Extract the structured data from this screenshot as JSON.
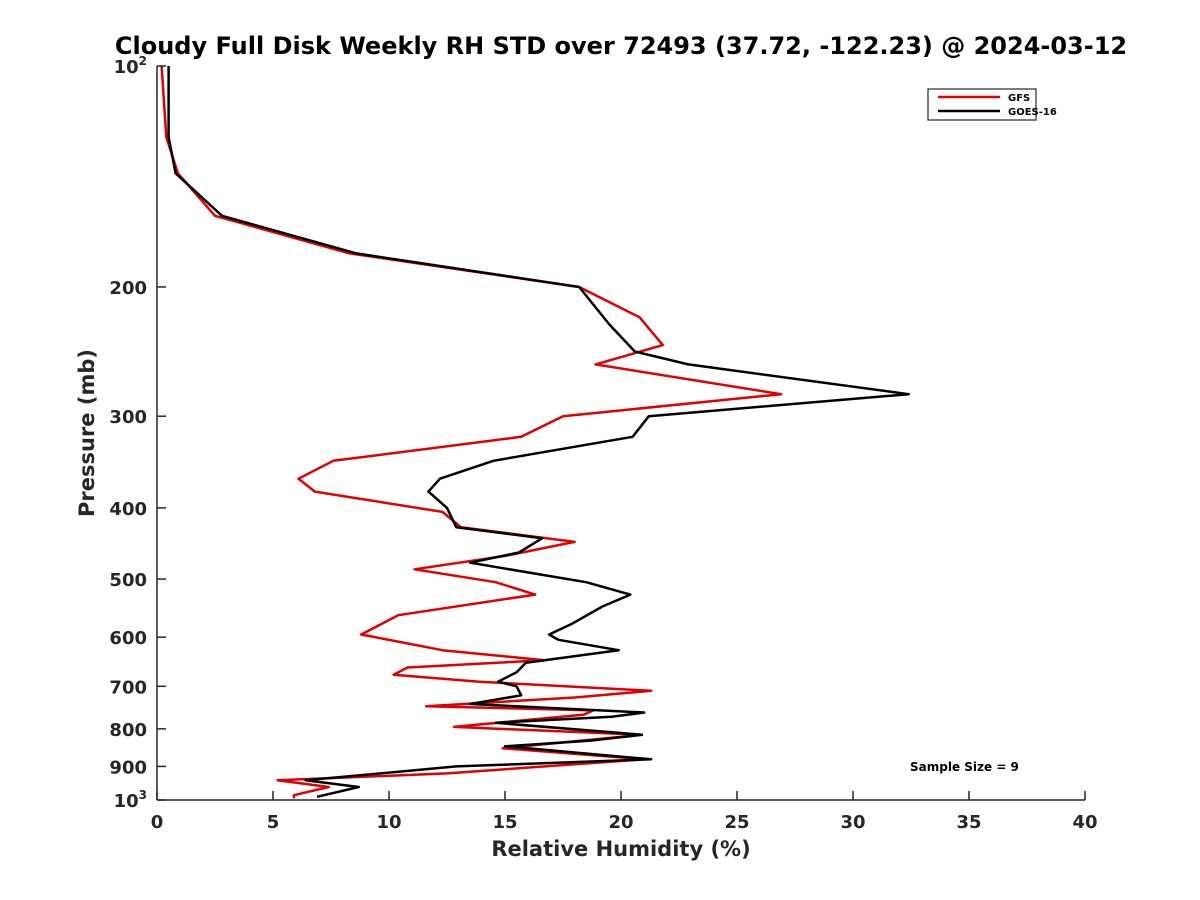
{
  "chart_data": {
    "type": "line",
    "title": "Cloudy Full Disk Weekly RH STD over 72493 (37.72, -122.23) @ 2024-03-12",
    "xlabel": "Relative Humidity (%)",
    "ylabel": "Pressure (mb)",
    "xlim": [
      0,
      40
    ],
    "ylim": [
      100,
      1000
    ],
    "y_scale": "log",
    "y_reversed": true,
    "x_ticks": [
      "0",
      "5",
      "10",
      "15",
      "20",
      "25",
      "30",
      "35",
      "40"
    ],
    "x_tick_values": [
      0,
      5,
      10,
      15,
      20,
      25,
      30,
      35,
      40
    ],
    "y_ticks": [
      {
        "value": 100,
        "base": "10",
        "exp": "2"
      },
      {
        "value": 200,
        "base": "200",
        "exp": ""
      },
      {
        "value": 300,
        "base": "300",
        "exp": ""
      },
      {
        "value": 400,
        "base": "400",
        "exp": ""
      },
      {
        "value": 500,
        "base": "500",
        "exp": ""
      },
      {
        "value": 600,
        "base": "600",
        "exp": ""
      },
      {
        "value": 700,
        "base": "700",
        "exp": ""
      },
      {
        "value": 800,
        "base": "800",
        "exp": ""
      },
      {
        "value": 900,
        "base": "900",
        "exp": ""
      },
      {
        "value": 1000,
        "base": "10",
        "exp": "3"
      }
    ],
    "grid": false,
    "legend_position": "top-right",
    "annotation": "Sample Size = 9",
    "series": [
      {
        "name": "GFS",
        "color": "#e00000",
        "points": [
          [
            0.2,
            100
          ],
          [
            0.4,
            125
          ],
          [
            0.9,
            140
          ],
          [
            2.5,
            160
          ],
          [
            8.3,
            180
          ],
          [
            18.2,
            200
          ],
          [
            20.8,
            220
          ],
          [
            21.8,
            240
          ],
          [
            18.9,
            255
          ],
          [
            26.9,
            280
          ],
          [
            17.5,
            300
          ],
          [
            15.7,
            320
          ],
          [
            7.6,
            345
          ],
          [
            6.1,
            365
          ],
          [
            6.8,
            380
          ],
          [
            12.3,
            405
          ],
          [
            13.1,
            425
          ],
          [
            18.0,
            445
          ],
          [
            15.0,
            465
          ],
          [
            11.1,
            485
          ],
          [
            14.6,
            505
          ],
          [
            16.3,
            525
          ],
          [
            10.4,
            560
          ],
          [
            8.8,
            595
          ],
          [
            12.3,
            625
          ],
          [
            16.7,
            645
          ],
          [
            10.8,
            660
          ],
          [
            10.2,
            675
          ],
          [
            13.9,
            690
          ],
          [
            21.3,
            710
          ],
          [
            18.0,
            725
          ],
          [
            11.6,
            745
          ],
          [
            18.8,
            755
          ],
          [
            18.4,
            765
          ],
          [
            12.8,
            795
          ],
          [
            20.9,
            815
          ],
          [
            14.9,
            850
          ],
          [
            21.0,
            880
          ],
          [
            12.5,
            920
          ],
          [
            5.2,
            940
          ],
          [
            7.4,
            960
          ],
          [
            5.9,
            985
          ],
          [
            5.9,
            995
          ]
        ]
      },
      {
        "name": "GOES-16",
        "color": "#000000",
        "points": [
          [
            0.5,
            100
          ],
          [
            0.5,
            125
          ],
          [
            0.8,
            140
          ],
          [
            2.8,
            160
          ],
          [
            8.6,
            180
          ],
          [
            18.2,
            200
          ],
          [
            19.5,
            225
          ],
          [
            20.6,
            245
          ],
          [
            22.9,
            255
          ],
          [
            32.4,
            280
          ],
          [
            21.2,
            300
          ],
          [
            20.5,
            320
          ],
          [
            14.5,
            345
          ],
          [
            12.2,
            365
          ],
          [
            11.7,
            380
          ],
          [
            12.5,
            400
          ],
          [
            12.9,
            425
          ],
          [
            16.6,
            440
          ],
          [
            15.6,
            460
          ],
          [
            13.5,
            475
          ],
          [
            18.5,
            505
          ],
          [
            20.4,
            525
          ],
          [
            19.2,
            545
          ],
          [
            17.9,
            575
          ],
          [
            16.9,
            595
          ],
          [
            17.3,
            605
          ],
          [
            19.9,
            625
          ],
          [
            15.9,
            650
          ],
          [
            15.5,
            670
          ],
          [
            14.7,
            690
          ],
          [
            15.5,
            700
          ],
          [
            15.7,
            720
          ],
          [
            13.5,
            740
          ],
          [
            21.0,
            760
          ],
          [
            19.6,
            770
          ],
          [
            14.6,
            785
          ],
          [
            20.9,
            815
          ],
          [
            18.7,
            830
          ],
          [
            15.0,
            845
          ],
          [
            21.3,
            880
          ],
          [
            12.9,
            900
          ],
          [
            6.4,
            940
          ],
          [
            8.7,
            960
          ],
          [
            6.9,
            990
          ]
        ]
      }
    ]
  }
}
